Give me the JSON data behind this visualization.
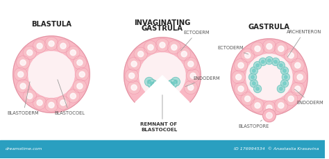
{
  "bg_color": "#ffffff",
  "pink_outer": "#f9b8c4",
  "pink_mid": "#f5c0cb",
  "pink_inner": "#fce4e8",
  "pink_light": "#fdf0f2",
  "teal_color": "#aaddd8",
  "teal_dark": "#5bbdb5",
  "teal_nucleus": "#6eccc5",
  "cell_pink": "#f8c0c8",
  "cell_outline": "#f090a8",
  "title1": "BLASTULA",
  "title2_line1": "INVAGINATING",
  "title2_line2": "GASTRULA",
  "title3": "GASTRULA",
  "label_blastoderm": "BLASTODERM",
  "label_blastocoel": "BLASTOCOEL",
  "label_ectoderm2": "ECTODERM",
  "label_endoderm2": "ENDODERM",
  "label_remnant": "REMNANT OF\nBLASTOCOEL",
  "label_ectoderm3": "ECTODERM",
  "label_archenteron": "ARCHENTERON",
  "label_endoderm3": "ENDODERM",
  "label_blastopore": "BLASTOPORE",
  "watermark_left": "dreamstime.com",
  "watermark_right": "ID 176994534  © Anastaslia Krasavina",
  "footer_color": "#2a9fc0",
  "text_color": "#4a4a4a",
  "label_fontsize": 4.8,
  "title_fontsize": 7.2
}
